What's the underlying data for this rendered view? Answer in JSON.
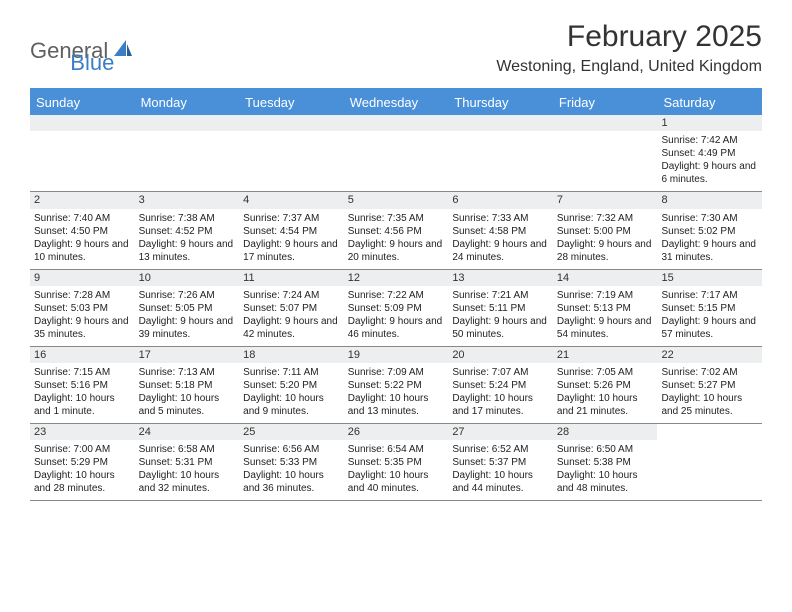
{
  "logo": {
    "general": "General",
    "blue": "Blue"
  },
  "title": "February 2025",
  "location": "Westoning, England, United Kingdom",
  "weekdays": [
    "Sunday",
    "Monday",
    "Tuesday",
    "Wednesday",
    "Thursday",
    "Friday",
    "Saturday"
  ],
  "colors": {
    "header_blue": "#4a90d9",
    "logo_blue": "#3a7fc4",
    "logo_gray": "#606060",
    "daynum_bg": "#eceeef",
    "divider": "#888888"
  },
  "weeks": [
    [
      {
        "blank": true
      },
      {
        "blank": true
      },
      {
        "blank": true
      },
      {
        "blank": true
      },
      {
        "blank": true
      },
      {
        "blank": true
      },
      {
        "num": "1",
        "sunrise": "Sunrise: 7:42 AM",
        "sunset": "Sunset: 4:49 PM",
        "daylight": "Daylight: 9 hours and 6 minutes."
      }
    ],
    [
      {
        "num": "2",
        "sunrise": "Sunrise: 7:40 AM",
        "sunset": "Sunset: 4:50 PM",
        "daylight": "Daylight: 9 hours and 10 minutes."
      },
      {
        "num": "3",
        "sunrise": "Sunrise: 7:38 AM",
        "sunset": "Sunset: 4:52 PM",
        "daylight": "Daylight: 9 hours and 13 minutes."
      },
      {
        "num": "4",
        "sunrise": "Sunrise: 7:37 AM",
        "sunset": "Sunset: 4:54 PM",
        "daylight": "Daylight: 9 hours and 17 minutes."
      },
      {
        "num": "5",
        "sunrise": "Sunrise: 7:35 AM",
        "sunset": "Sunset: 4:56 PM",
        "daylight": "Daylight: 9 hours and 20 minutes."
      },
      {
        "num": "6",
        "sunrise": "Sunrise: 7:33 AM",
        "sunset": "Sunset: 4:58 PM",
        "daylight": "Daylight: 9 hours and 24 minutes."
      },
      {
        "num": "7",
        "sunrise": "Sunrise: 7:32 AM",
        "sunset": "Sunset: 5:00 PM",
        "daylight": "Daylight: 9 hours and 28 minutes."
      },
      {
        "num": "8",
        "sunrise": "Sunrise: 7:30 AM",
        "sunset": "Sunset: 5:02 PM",
        "daylight": "Daylight: 9 hours and 31 minutes."
      }
    ],
    [
      {
        "num": "9",
        "sunrise": "Sunrise: 7:28 AM",
        "sunset": "Sunset: 5:03 PM",
        "daylight": "Daylight: 9 hours and 35 minutes."
      },
      {
        "num": "10",
        "sunrise": "Sunrise: 7:26 AM",
        "sunset": "Sunset: 5:05 PM",
        "daylight": "Daylight: 9 hours and 39 minutes."
      },
      {
        "num": "11",
        "sunrise": "Sunrise: 7:24 AM",
        "sunset": "Sunset: 5:07 PM",
        "daylight": "Daylight: 9 hours and 42 minutes."
      },
      {
        "num": "12",
        "sunrise": "Sunrise: 7:22 AM",
        "sunset": "Sunset: 5:09 PM",
        "daylight": "Daylight: 9 hours and 46 minutes."
      },
      {
        "num": "13",
        "sunrise": "Sunrise: 7:21 AM",
        "sunset": "Sunset: 5:11 PM",
        "daylight": "Daylight: 9 hours and 50 minutes."
      },
      {
        "num": "14",
        "sunrise": "Sunrise: 7:19 AM",
        "sunset": "Sunset: 5:13 PM",
        "daylight": "Daylight: 9 hours and 54 minutes."
      },
      {
        "num": "15",
        "sunrise": "Sunrise: 7:17 AM",
        "sunset": "Sunset: 5:15 PM",
        "daylight": "Daylight: 9 hours and 57 minutes."
      }
    ],
    [
      {
        "num": "16",
        "sunrise": "Sunrise: 7:15 AM",
        "sunset": "Sunset: 5:16 PM",
        "daylight": "Daylight: 10 hours and 1 minute."
      },
      {
        "num": "17",
        "sunrise": "Sunrise: 7:13 AM",
        "sunset": "Sunset: 5:18 PM",
        "daylight": "Daylight: 10 hours and 5 minutes."
      },
      {
        "num": "18",
        "sunrise": "Sunrise: 7:11 AM",
        "sunset": "Sunset: 5:20 PM",
        "daylight": "Daylight: 10 hours and 9 minutes."
      },
      {
        "num": "19",
        "sunrise": "Sunrise: 7:09 AM",
        "sunset": "Sunset: 5:22 PM",
        "daylight": "Daylight: 10 hours and 13 minutes."
      },
      {
        "num": "20",
        "sunrise": "Sunrise: 7:07 AM",
        "sunset": "Sunset: 5:24 PM",
        "daylight": "Daylight: 10 hours and 17 minutes."
      },
      {
        "num": "21",
        "sunrise": "Sunrise: 7:05 AM",
        "sunset": "Sunset: 5:26 PM",
        "daylight": "Daylight: 10 hours and 21 minutes."
      },
      {
        "num": "22",
        "sunrise": "Sunrise: 7:02 AM",
        "sunset": "Sunset: 5:27 PM",
        "daylight": "Daylight: 10 hours and 25 minutes."
      }
    ],
    [
      {
        "num": "23",
        "sunrise": "Sunrise: 7:00 AM",
        "sunset": "Sunset: 5:29 PM",
        "daylight": "Daylight: 10 hours and 28 minutes."
      },
      {
        "num": "24",
        "sunrise": "Sunrise: 6:58 AM",
        "sunset": "Sunset: 5:31 PM",
        "daylight": "Daylight: 10 hours and 32 minutes."
      },
      {
        "num": "25",
        "sunrise": "Sunrise: 6:56 AM",
        "sunset": "Sunset: 5:33 PM",
        "daylight": "Daylight: 10 hours and 36 minutes."
      },
      {
        "num": "26",
        "sunrise": "Sunrise: 6:54 AM",
        "sunset": "Sunset: 5:35 PM",
        "daylight": "Daylight: 10 hours and 40 minutes."
      },
      {
        "num": "27",
        "sunrise": "Sunrise: 6:52 AM",
        "sunset": "Sunset: 5:37 PM",
        "daylight": "Daylight: 10 hours and 44 minutes."
      },
      {
        "num": "28",
        "sunrise": "Sunrise: 6:50 AM",
        "sunset": "Sunset: 5:38 PM",
        "daylight": "Daylight: 10 hours and 48 minutes."
      },
      {
        "blank": true,
        "nobar": true
      }
    ]
  ]
}
